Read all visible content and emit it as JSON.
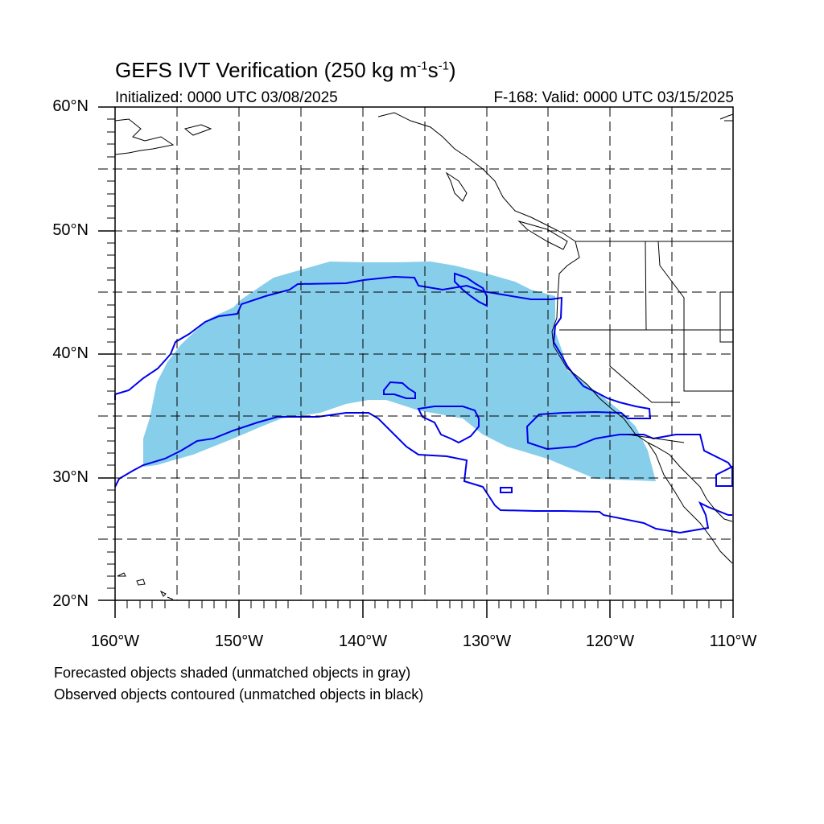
{
  "title": "GEFS IVT Verification (250 kg m",
  "title_sup1": "-1",
  "title_mid": "s",
  "title_sup2": "-1",
  "title_end": ")",
  "initialized": "Initialized: 0000 UTC 03/08/2025",
  "valid": "F-168: Valid: 0000 UTC 03/15/2025",
  "lat_labels": [
    "60°N",
    "50°N",
    "40°N",
    "30°N",
    "20°N"
  ],
  "lon_labels": [
    "160°W",
    "150°W",
    "140°W",
    "130°W",
    "120°W",
    "110°W"
  ],
  "notes": {
    "forecast": "Forecasted objects shaded (unmatched objects in gray)",
    "observed": "Observed objects contoured (unmatched objects in black)"
  },
  "colors": {
    "forecast_fill": "#87ceeb",
    "observed_contour": "#0000ee",
    "coastline": "#000000"
  },
  "map": {
    "lon_range": [
      -160,
      -110
    ],
    "lat_range": [
      20,
      60
    ]
  }
}
